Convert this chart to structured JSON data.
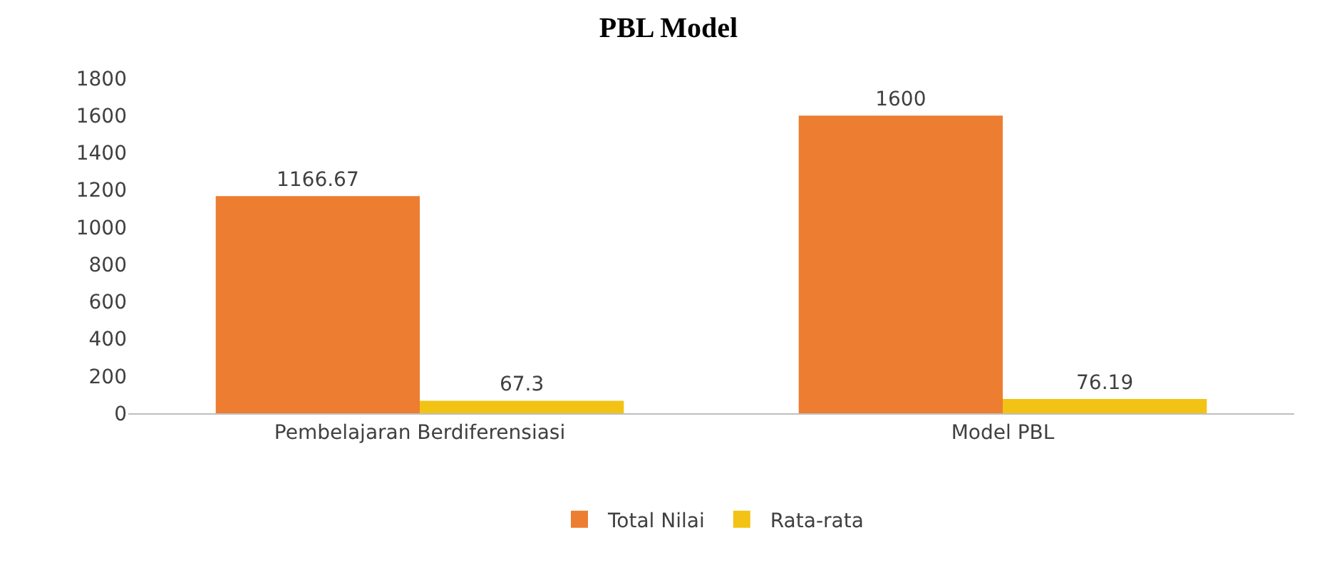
{
  "chart_data": {
    "type": "bar",
    "title": "PBL Model",
    "categories": [
      "Pembelajaran Berdiferensiasi",
      "Model PBL"
    ],
    "series": [
      {
        "name": "Total Nilai",
        "color": "#ed7d31",
        "values": [
          1166.67,
          1600
        ]
      },
      {
        "name": "Rata-rata",
        "color": "#f2c314",
        "values": [
          67.3,
          76.19
        ]
      }
    ],
    "ylim": [
      0,
      1800
    ],
    "yticks": [
      0,
      200,
      400,
      600,
      800,
      1000,
      1200,
      1400,
      1600,
      1800
    ],
    "grid": false,
    "legend": "bottom",
    "data_labels": true
  }
}
